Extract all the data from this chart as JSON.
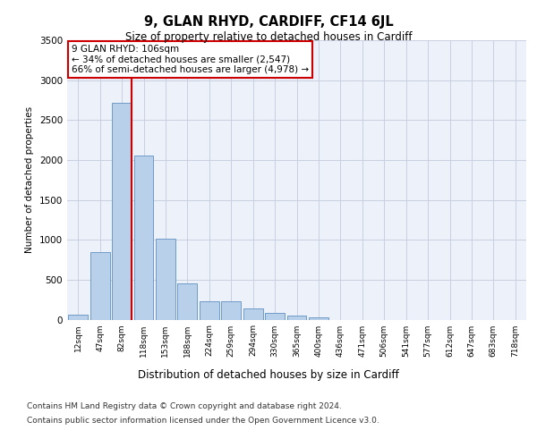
{
  "title": "9, GLAN RHYD, CARDIFF, CF14 6JL",
  "subtitle": "Size of property relative to detached houses in Cardiff",
  "xlabel": "Distribution of detached houses by size in Cardiff",
  "ylabel": "Number of detached properties",
  "categories": [
    "12sqm",
    "47sqm",
    "82sqm",
    "118sqm",
    "153sqm",
    "188sqm",
    "224sqm",
    "259sqm",
    "294sqm",
    "330sqm",
    "365sqm",
    "400sqm",
    "436sqm",
    "471sqm",
    "506sqm",
    "541sqm",
    "577sqm",
    "612sqm",
    "647sqm",
    "683sqm",
    "718sqm"
  ],
  "values": [
    60,
    850,
    2720,
    2060,
    1010,
    450,
    230,
    230,
    145,
    80,
    55,
    30,
    0,
    0,
    0,
    0,
    0,
    0,
    0,
    0,
    0
  ],
  "bar_color": "#b8d0ea",
  "bar_edge_color": "#6090c0",
  "background_color": "#edf1f9",
  "grid_color": "#c8cfe0",
  "vline_color": "#cc0000",
  "annotation_text": "9 GLAN RHYD: 106sqm\n← 34% of detached houses are smaller (2,547)\n66% of semi-detached houses are larger (4,978) →",
  "annotation_box_color": "#cc0000",
  "ylim": [
    0,
    3500
  ],
  "yticks": [
    0,
    500,
    1000,
    1500,
    2000,
    2500,
    3000,
    3500
  ],
  "footer_line1": "Contains HM Land Registry data © Crown copyright and database right 2024.",
  "footer_line2": "Contains public sector information licensed under the Open Government Licence v3.0."
}
